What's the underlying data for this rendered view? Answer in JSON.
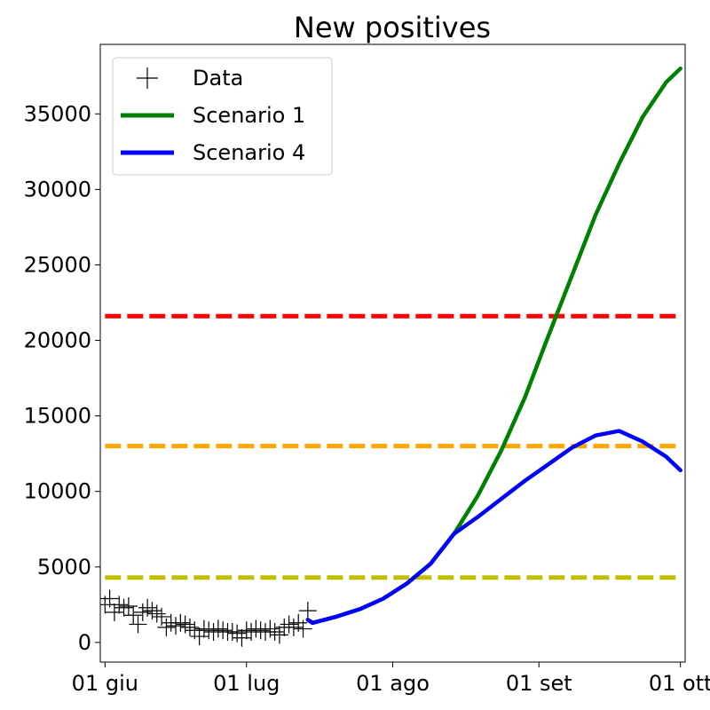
{
  "chart_data": {
    "type": "line",
    "title": "New positives",
    "xlabel": "",
    "ylabel": "",
    "x_axis": {
      "type": "date",
      "range": [
        "2020-05-31",
        "2020-10-02"
      ],
      "ticks": [
        {
          "date": "2020-06-01",
          "label": "01 giu"
        },
        {
          "date": "2020-07-01",
          "label": "01 lug"
        },
        {
          "date": "2020-08-01",
          "label": "01 ago"
        },
        {
          "date": "2020-09-01",
          "label": "01 set"
        },
        {
          "date": "2020-10-01",
          "label": "01 ott"
        }
      ]
    },
    "y_axis": {
      "range": [
        -1300,
        39600
      ],
      "ticks": [
        0,
        5000,
        10000,
        15000,
        20000,
        25000,
        30000,
        35000
      ]
    },
    "grid": false,
    "legend": {
      "placement": "top-left",
      "entries": [
        {
          "series": "data",
          "label": "Data"
        },
        {
          "series": "scenario1",
          "label": "Scenario 1"
        },
        {
          "series": "scenario4",
          "label": "Scenario 4"
        }
      ]
    },
    "series": [
      {
        "id": "data",
        "name": "Data",
        "kind": "scatter",
        "marker": "plus",
        "color": "#000000",
        "x": [
          "2020-06-01",
          "2020-06-02",
          "2020-06-03",
          "2020-06-04",
          "2020-06-05",
          "2020-06-06",
          "2020-06-07",
          "2020-06-08",
          "2020-06-09",
          "2020-06-10",
          "2020-06-11",
          "2020-06-12",
          "2020-06-13",
          "2020-06-14",
          "2020-06-15",
          "2020-06-16",
          "2020-06-17",
          "2020-06-18",
          "2020-06-19",
          "2020-06-20",
          "2020-06-21",
          "2020-06-22",
          "2020-06-23",
          "2020-06-24",
          "2020-06-25",
          "2020-06-26",
          "2020-06-27",
          "2020-06-28",
          "2020-06-29",
          "2020-06-30",
          "2020-07-01",
          "2020-07-02",
          "2020-07-03",
          "2020-07-04",
          "2020-07-05",
          "2020-07-06",
          "2020-07-07",
          "2020-07-08",
          "2020-07-09",
          "2020-07-10",
          "2020-07-11",
          "2020-07-12",
          "2020-07-13",
          "2020-07-14"
        ],
        "y": [
          2500,
          2900,
          2000,
          2500,
          2300,
          2400,
          1800,
          1200,
          2000,
          2300,
          2100,
          1900,
          1700,
          1000,
          1300,
          1100,
          1300,
          1200,
          1000,
          800,
          400,
          900,
          800,
          700,
          900,
          800,
          700,
          700,
          600,
          300,
          800,
          700,
          900,
          800,
          700,
          900,
          700,
          500,
          1000,
          1200,
          1000,
          1300,
          900,
          2100
        ]
      },
      {
        "id": "scenario1",
        "name": "Scenario 1",
        "kind": "line",
        "color": "#008000",
        "x": [
          "2020-07-14",
          "2020-07-15",
          "2020-07-20",
          "2020-07-25",
          "2020-07-30",
          "2020-08-04",
          "2020-08-09",
          "2020-08-14",
          "2020-08-19",
          "2020-08-24",
          "2020-08-29",
          "2020-09-03",
          "2020-09-08",
          "2020-09-13",
          "2020-09-18",
          "2020-09-23",
          "2020-09-28",
          "2020-10-01"
        ],
        "y": [
          1500,
          1300,
          1700,
          2200,
          2900,
          3900,
          5200,
          7200,
          9700,
          12700,
          16200,
          20300,
          24300,
          28300,
          31700,
          34800,
          37100,
          38000
        ]
      },
      {
        "id": "scenario4",
        "name": "Scenario 4",
        "kind": "line",
        "color": "#0000ff",
        "x": [
          "2020-07-14",
          "2020-07-15",
          "2020-07-20",
          "2020-07-25",
          "2020-07-30",
          "2020-08-04",
          "2020-08-09",
          "2020-08-14",
          "2020-08-19",
          "2020-08-24",
          "2020-08-29",
          "2020-09-03",
          "2020-09-08",
          "2020-09-13",
          "2020-09-18",
          "2020-09-23",
          "2020-09-28",
          "2020-10-01"
        ],
        "y": [
          1500,
          1300,
          1700,
          2200,
          2900,
          3900,
          5200,
          7200,
          8300,
          9500,
          10700,
          11800,
          12900,
          13700,
          14000,
          13300,
          12300,
          11400
        ]
      }
    ],
    "threshold_lines": [
      {
        "y": 21600,
        "color": "#ff0000",
        "style": "dashed"
      },
      {
        "y": 13000,
        "color": "#ffa500",
        "style": "dashed"
      },
      {
        "y": 4300,
        "color": "#bfbf00",
        "style": "dashed"
      }
    ]
  }
}
